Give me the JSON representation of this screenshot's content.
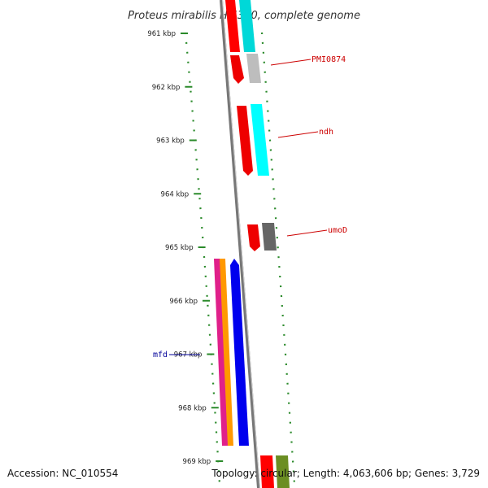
{
  "title": "Proteus mirabilis HI4320, complete genome",
  "ticks": [
    {
      "label": "961 kbp"
    },
    {
      "label": "962 kbp"
    },
    {
      "label": "963 kbp"
    },
    {
      "label": "964 kbp"
    },
    {
      "label": "965 kbp"
    },
    {
      "label": "966 kbp"
    },
    {
      "label": "967 kbp"
    },
    {
      "label": "968 kbp"
    },
    {
      "label": "969 kbp"
    }
  ],
  "gene_labels": [
    {
      "label": "PMI0874",
      "color": "#cc0000"
    },
    {
      "label": "ndh",
      "color": "#cc0000"
    },
    {
      "label": "umoD",
      "color": "#cc0000"
    },
    {
      "label": "mfd",
      "color": "#000099"
    }
  ],
  "footer": {
    "accession": "Accession: NC_010554",
    "topology": "Topology: circular; Length: 4,063,606 bp; Genes: 3,729"
  },
  "colors": {
    "tick": "#2a8a2a",
    "backbone": "#808080",
    "red": "#ff0000",
    "cyan": "#00e5e5",
    "gray": "#b0b0b0",
    "dark_gray": "#666666",
    "magenta": "#e0208a",
    "orange": "#ff9900",
    "blue": "#0000ee",
    "olive": "#6b8e23"
  }
}
